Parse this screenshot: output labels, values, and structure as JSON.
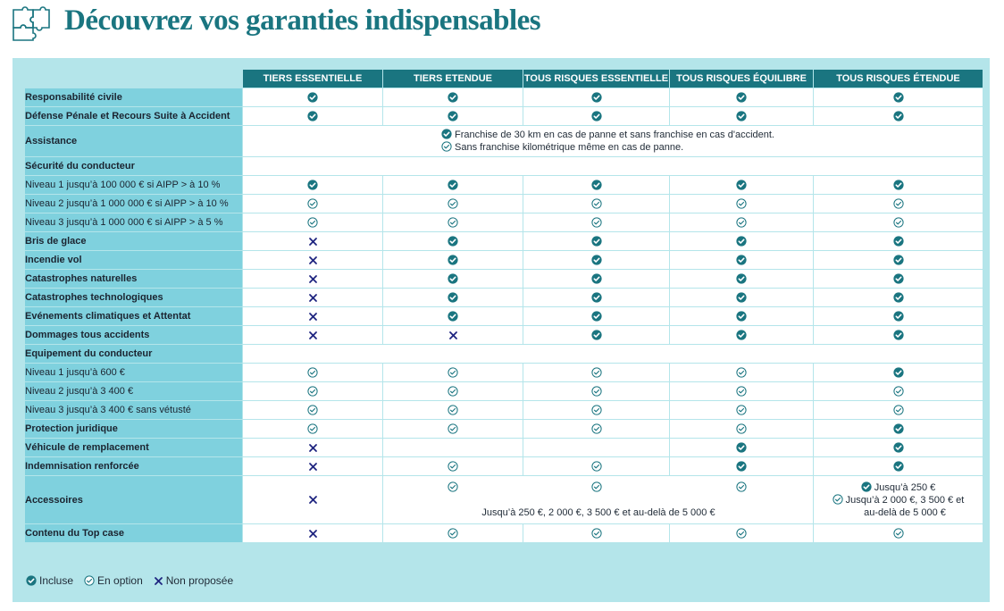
{
  "title": "Découvrez vos garanties indispensables",
  "colors": {
    "accent": "#1a7580",
    "panel": "#b4e5ea",
    "label_bg": "#7fd1de",
    "cross": "#1f2580"
  },
  "icons": {
    "included": "filled-check-circle-icon",
    "option": "outline-check-circle-icon",
    "not_offered": "cross-icon",
    "logo": "puzzle-icon"
  },
  "columns": [
    "TIERS ESSENTIELLE",
    "TIERS ETENDUE",
    "TOUS RISQUES ESSENTIELLE",
    "TOUS RISQUES ÉQUILIBRE",
    "TOUS RISQUES ÉTENDUE"
  ],
  "rows": [
    {
      "label": "Responsabilité civile",
      "bold": true,
      "type": "marks",
      "values": [
        "I",
        "I",
        "I",
        "I",
        "I"
      ]
    },
    {
      "label": "Défense Pénale et Recours Suite à Accident",
      "bold": true,
      "type": "marks",
      "values": [
        "I",
        "I",
        "I",
        "I",
        "I"
      ]
    },
    {
      "label": "Assistance",
      "bold": true,
      "type": "assistance",
      "lines": [
        {
          "mark": "I",
          "text": "Franchise de 30 km en cas de panne et sans franchise en cas d'accident."
        },
        {
          "mark": "O",
          "text": "Sans franchise kilométrique même en cas de panne."
        }
      ]
    },
    {
      "label": "Sécurité du conducteur",
      "bold": true,
      "type": "section"
    },
    {
      "label": "Niveau 1 jusqu’à 100 000 € si AIPP > à 10 %",
      "bold": false,
      "type": "marks",
      "values": [
        "I",
        "I",
        "I",
        "I",
        "I"
      ]
    },
    {
      "label": "Niveau 2 jusqu’à 1 000 000 € si AIPP > à 10 %",
      "bold": false,
      "type": "marks",
      "values": [
        "O",
        "O",
        "O",
        "O",
        "O"
      ]
    },
    {
      "label": "Niveau 3 jusqu’à 1 000 000 € si AIPP > à 5 %",
      "bold": false,
      "type": "marks",
      "values": [
        "O",
        "O",
        "O",
        "O",
        "O"
      ]
    },
    {
      "label": "Bris de glace",
      "bold": true,
      "type": "marks",
      "values": [
        "X",
        "I",
        "I",
        "I",
        "I"
      ]
    },
    {
      "label": "Incendie vol",
      "bold": true,
      "type": "marks",
      "values": [
        "X",
        "I",
        "I",
        "I",
        "I"
      ]
    },
    {
      "label": "Catastrophes naturelles",
      "bold": true,
      "type": "marks",
      "values": [
        "X",
        "I",
        "I",
        "I",
        "I"
      ]
    },
    {
      "label": "Catastrophes technologiques",
      "bold": true,
      "type": "marks",
      "values": [
        "X",
        "I",
        "I",
        "I",
        "I"
      ]
    },
    {
      "label": "Evénements climatiques et Attentat",
      "bold": true,
      "type": "marks",
      "values": [
        "X",
        "I",
        "I",
        "I",
        "I"
      ]
    },
    {
      "label": "Dommages tous accidents",
      "bold": true,
      "type": "marks",
      "values": [
        "X",
        "X",
        "I",
        "I",
        "I"
      ]
    },
    {
      "label": "Equipement du conducteur",
      "bold": true,
      "type": "section"
    },
    {
      "label": "Niveau 1 jusqu’à 600 €",
      "bold": false,
      "type": "marks",
      "values": [
        "O",
        "O",
        "O",
        "O",
        "I"
      ]
    },
    {
      "label": "Niveau 2 jusqu’à 3 400 €",
      "bold": false,
      "type": "marks",
      "values": [
        "O",
        "O",
        "O",
        "O",
        "O"
      ]
    },
    {
      "label": "Niveau 3 jusqu’à 3 400 € sans vétusté",
      "bold": false,
      "type": "marks",
      "values": [
        "O",
        "O",
        "O",
        "O",
        "O"
      ]
    },
    {
      "label": "Protection juridique",
      "bold": true,
      "type": "marks",
      "values": [
        "O",
        "O",
        "O",
        "O",
        "I"
      ]
    },
    {
      "label": "Véhicule de remplacement",
      "bold": true,
      "type": "marks",
      "values": [
        "X",
        "",
        "",
        "I",
        "I"
      ]
    },
    {
      "label": "Indemnisation renforcée",
      "bold": true,
      "type": "marks",
      "values": [
        "X",
        "O",
        "O",
        "I",
        "I"
      ]
    },
    {
      "label": "Accessoires",
      "bold": true,
      "type": "accessoires",
      "first": "X",
      "merged_marks": [
        "O",
        "O",
        "O"
      ],
      "merged_note": "Jusqu’à 250 €, 2 000 €, 3 500 € et au-delà de 5 000 €",
      "last_lines": [
        {
          "mark": "I",
          "text": "Jusqu’à 250 €"
        },
        {
          "mark": "O",
          "text": "Jusqu’à  2 000 €, 3 500 € et"
        },
        {
          "mark": "",
          "text": "au-delà de 5 000 €"
        }
      ]
    },
    {
      "label": "Contenu du Top case",
      "bold": true,
      "type": "marks",
      "values": [
        "X",
        "O",
        "O",
        "O",
        "O"
      ]
    }
  ],
  "legend": [
    {
      "mark": "I",
      "label": "Incluse"
    },
    {
      "mark": "O",
      "label": "En option"
    },
    {
      "mark": "X",
      "label": "Non proposée"
    }
  ]
}
